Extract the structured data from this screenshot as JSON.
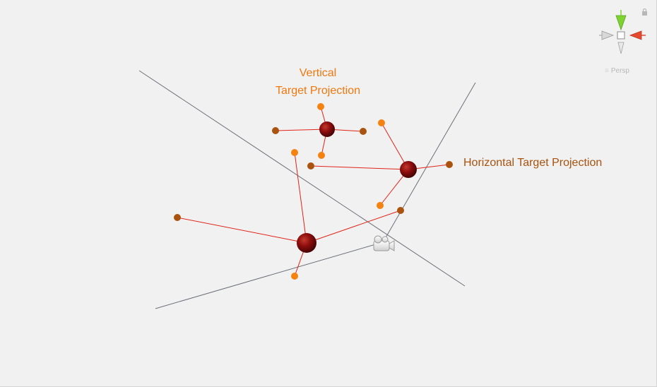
{
  "scene_view": {
    "labels": {
      "vertical_line1": "Vertical",
      "vertical_line2": "Target Projection",
      "horizontal": "Horizontal Target Projection"
    },
    "projection_mode": "Persp"
  },
  "colors": {
    "background": "#f1f1f1",
    "vertical_label": "#f0780f",
    "horizontal_label": "#a8520e",
    "frustum_line": "#6b7178",
    "connector": "#e02418",
    "target_sphere": "#8e0d0d",
    "vertical_point": "#f5820f",
    "horizontal_point": "#a9530f",
    "gizmo_y": "#7fd330",
    "gizmo_x": "#e64a2e",
    "gizmo_z_neutral": "#b0b0b0"
  },
  "icons": {
    "camera": "camera-icon",
    "lock": "lock-icon",
    "gizmo": "orientation-gizmo"
  }
}
